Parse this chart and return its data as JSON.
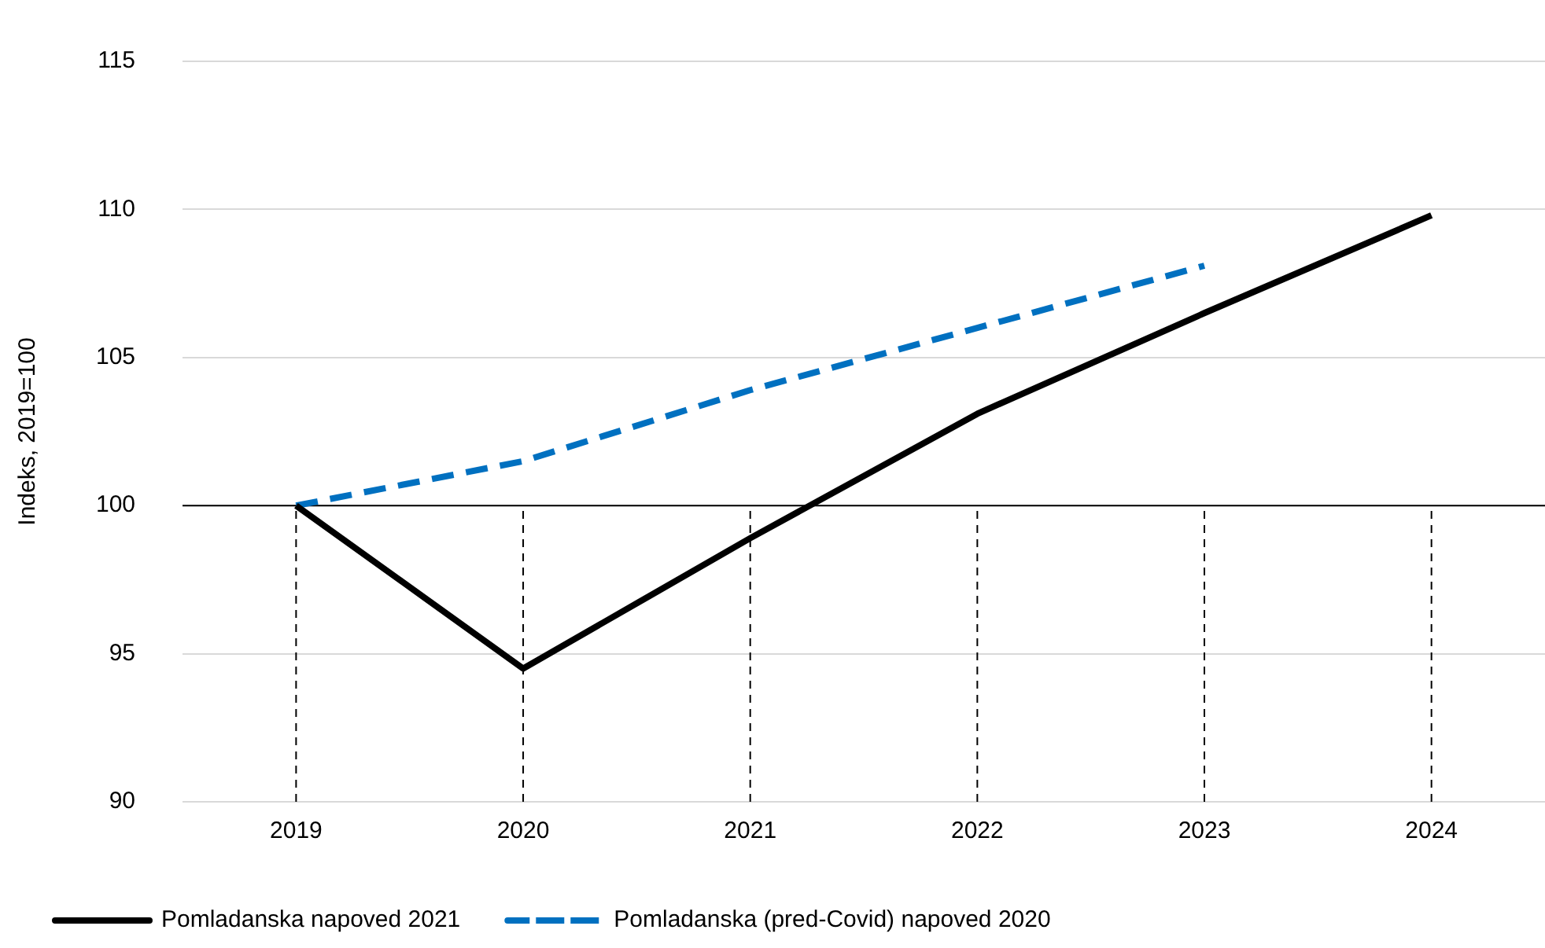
{
  "chart_data": {
    "type": "line",
    "ylabel": "Indeks, 2019=100",
    "categories": [
      "2019",
      "2020",
      "2021",
      "2022",
      "2023",
      "2024"
    ],
    "series": [
      {
        "name": "Pomladanska napoved 2021",
        "color": "#000000",
        "values": [
          100,
          94.5,
          98.9,
          103.1,
          106.5,
          109.8
        ],
        "line_style": "solid"
      },
      {
        "name": "Pomladanska (pred-Covid) napoved 2020",
        "color": "#0070c0",
        "values": [
          100,
          101.5,
          103.9,
          106,
          108.1,
          null
        ],
        "line_style": "dashed"
      }
    ],
    "ylim": [
      90,
      115
    ],
    "yticks": [
      90,
      95,
      100,
      105,
      110,
      115
    ],
    "grid": "y",
    "legend": "bottom",
    "marker": "none",
    "ref_lines": [
      {
        "axis": "y",
        "value": 100,
        "color": "#000000"
      },
      {
        "axis": "x",
        "value": "2019",
        "color": "#000000",
        "line_style": "dashed"
      },
      {
        "axis": "x",
        "value": "2020",
        "color": "#000000",
        "line_style": "dashed"
      },
      {
        "axis": "x",
        "value": "2021",
        "color": "#000000",
        "line_style": "dashed"
      },
      {
        "axis": "x",
        "value": "2022",
        "color": "#000000",
        "line_style": "dashed"
      },
      {
        "axis": "x",
        "value": "2023",
        "color": "#000000",
        "line_style": "dashed"
      },
      {
        "axis": "x",
        "value": "2024",
        "color": "#000000",
        "line_style": "dashed"
      }
    ]
  }
}
